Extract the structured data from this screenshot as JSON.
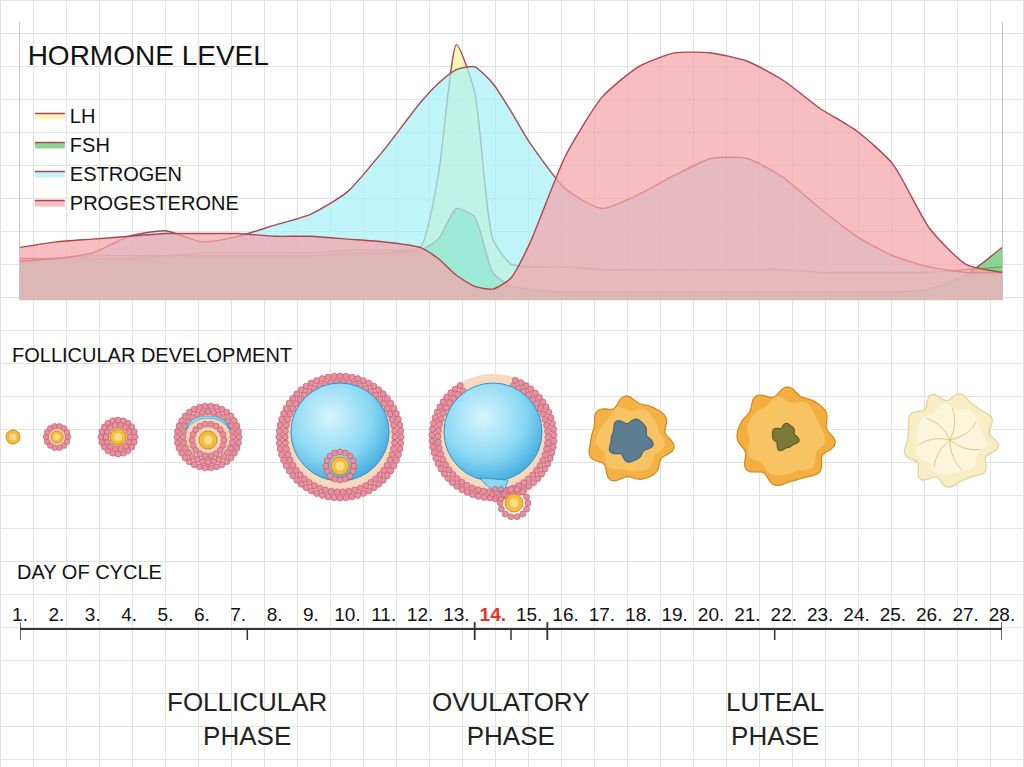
{
  "chart_data": {
    "type": "area",
    "title": "HORMONE LEVEL",
    "xlabel": "DAY OF CYCLE",
    "x": [
      1,
      2,
      3,
      4,
      5,
      6,
      7,
      8,
      9,
      10,
      11,
      12,
      12.5,
      13,
      13.5,
      14,
      14.5,
      15,
      16,
      17,
      18,
      19,
      20,
      21,
      22,
      23,
      24,
      25,
      26,
      27,
      28
    ],
    "series": [
      {
        "name": "LH",
        "color": "#f9f3a0",
        "values": [
          15,
          15,
          16,
          16,
          16,
          17,
          17,
          17,
          17,
          18,
          18,
          19,
          45,
          92,
          75,
          22,
          13,
          12,
          12,
          11,
          11,
          11,
          11,
          11,
          11,
          10,
          10,
          10,
          10,
          11,
          12
        ]
      },
      {
        "name": "FSH",
        "color": "#5fc46f",
        "values": [
          14,
          15,
          15,
          15,
          16,
          16,
          16,
          16,
          16,
          17,
          17,
          18,
          22,
          33,
          30,
          10,
          5,
          4,
          3,
          3,
          3,
          3,
          3,
          3,
          3,
          3,
          3,
          3,
          4,
          9,
          19
        ]
      },
      {
        "name": "ESTROGEN",
        "color": "#a6f1f6",
        "values": [
          14,
          15,
          17,
          23,
          25,
          21,
          23,
          27,
          31,
          39,
          54,
          71,
          78,
          83,
          84,
          78,
          68,
          57,
          40,
          33,
          38,
          45,
          51,
          51,
          44,
          33,
          23,
          16,
          12,
          10,
          10
        ]
      },
      {
        "name": "PROGESTERONE",
        "color": "#f5a3a9",
        "values": [
          19,
          21,
          22,
          23,
          24,
          24,
          24,
          23,
          23,
          22,
          21,
          19,
          15,
          9,
          5,
          4,
          8,
          20,
          52,
          73,
          84,
          89,
          89,
          86,
          79,
          69,
          61,
          49,
          26,
          13,
          10
        ]
      }
    ],
    "xlim": [
      1,
      28
    ],
    "xticks": [
      {
        "value": 1,
        "label": "1."
      },
      {
        "value": 2,
        "label": "2."
      },
      {
        "value": 3,
        "label": "3."
      },
      {
        "value": 4,
        "label": "4."
      },
      {
        "value": 5,
        "label": "5."
      },
      {
        "value": 6,
        "label": "6."
      },
      {
        "value": 7,
        "label": "7."
      },
      {
        "value": 8,
        "label": "8."
      },
      {
        "value": 9,
        "label": "9."
      },
      {
        "value": 10,
        "label": "10."
      },
      {
        "value": 11,
        "label": "11."
      },
      {
        "value": 12,
        "label": "12."
      },
      {
        "value": 13,
        "label": "13."
      },
      {
        "value": 14,
        "label": "14.",
        "color": "#e8312a"
      },
      {
        "value": 15,
        "label": "15."
      },
      {
        "value": 16,
        "label": "16."
      },
      {
        "value": 17,
        "label": "17."
      },
      {
        "value": 18,
        "label": "18."
      },
      {
        "value": 19,
        "label": "19."
      },
      {
        "value": 20,
        "label": "20."
      },
      {
        "value": 21,
        "label": "21."
      },
      {
        "value": 22,
        "label": "22."
      },
      {
        "value": 23,
        "label": "23."
      },
      {
        "value": 24,
        "label": "24."
      },
      {
        "value": 25,
        "label": "25."
      },
      {
        "value": 26,
        "label": "26."
      },
      {
        "value": 27,
        "label": "27."
      },
      {
        "value": 28,
        "label": "28."
      }
    ],
    "ylim": [
      0,
      100
    ],
    "tick_labels": "x",
    "legend": "upper left",
    "follicular_development": {
      "title": "FOLLICULAR DEVELOPMENT"
    },
    "phases": [
      {
        "label": [
          "FOLLICULAR",
          "PHASE"
        ],
        "start": 1,
        "end": 13.5
      },
      {
        "label": [
          "OVULATORY",
          "PHASE"
        ],
        "start": 13.5,
        "end": 15.5
      },
      {
        "label": [
          "LUTEAL",
          "PHASE"
        ],
        "start": 15.5,
        "end": 28
      }
    ]
  }
}
